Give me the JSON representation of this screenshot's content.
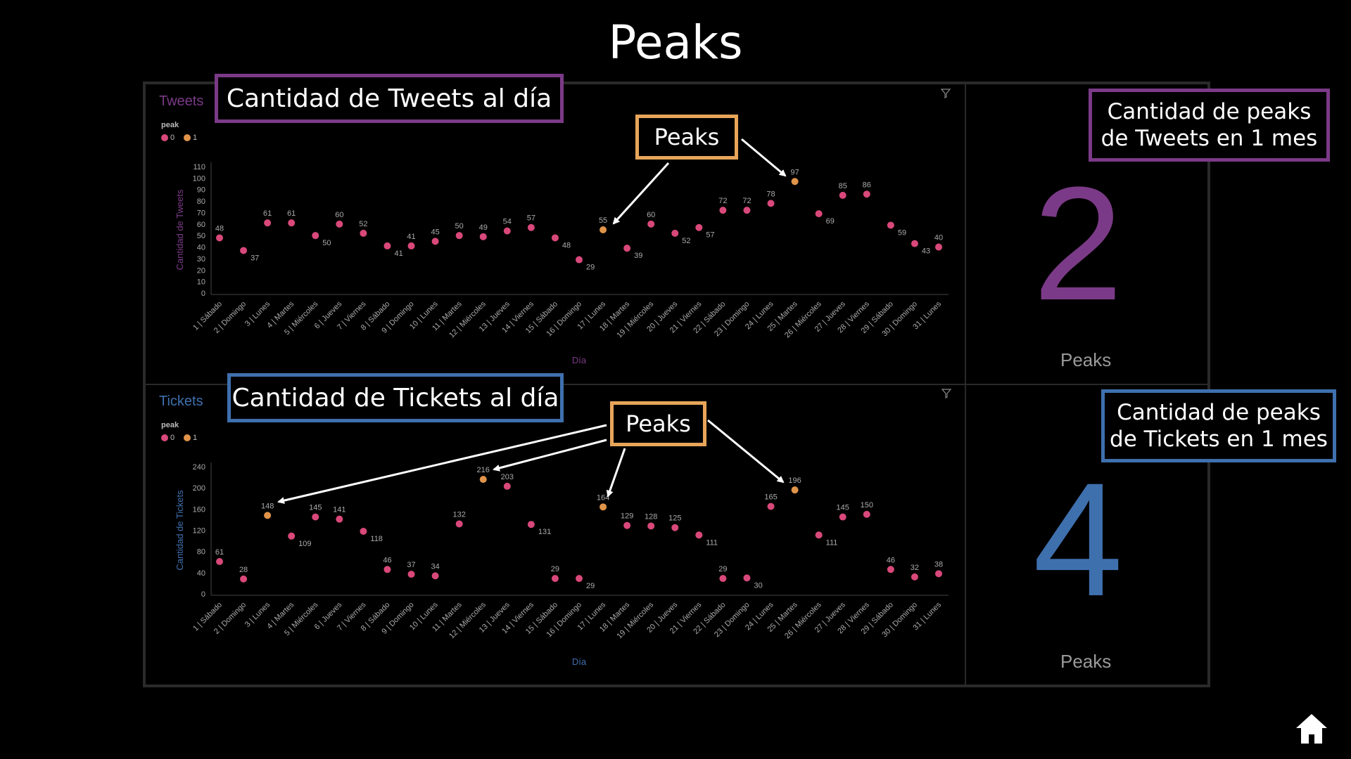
{
  "page": {
    "title": "Peaks"
  },
  "colors": {
    "tweets_accent": "#7b3a87",
    "tickets_accent": "#3f70ae",
    "peak_callout": "#e7a55a",
    "dot_normal": "#d9487a",
    "dot_peak": "#e0944a"
  },
  "tweets_panel": {
    "chart_title": "Tweets",
    "callout": "Cantidad de Tweets al día",
    "peaks_callout": "Peaks",
    "legend_title": "peak",
    "legend": [
      "0",
      "1"
    ],
    "kpi_callout_line1": "Cantidad de peaks",
    "kpi_callout_line2": "de Tweets en 1 mes",
    "kpi_value": "2",
    "kpi_label": "Peaks"
  },
  "tickets_panel": {
    "chart_title": "Tickets",
    "callout": "Cantidad de Tickets al día",
    "peaks_callout": "Peaks",
    "legend_title": "peak",
    "legend": [
      "0",
      "1"
    ],
    "kpi_callout_line1": "Cantidad de peaks",
    "kpi_callout_line2": "de Tickets en 1 mes",
    "kpi_value": "4",
    "kpi_label": "Peaks"
  },
  "chart_data": [
    {
      "type": "scatter",
      "title": "Tweets",
      "xlabel": "Día",
      "ylabel": "Cantidad de Tweets",
      "ylim": [
        0,
        110
      ],
      "yticks": [
        0,
        10,
        20,
        30,
        40,
        50,
        60,
        70,
        80,
        90,
        100,
        110
      ],
      "categories": [
        "1 | Sábado",
        "2 | Domingo",
        "3 | Lunes",
        "4 | Martes",
        "5 | Miércoles",
        "6 | Jueves",
        "7 | Viernes",
        "8 | Sábado",
        "9 | Domingo",
        "10 | Lunes",
        "11 | Martes",
        "12 | Miércoles",
        "13 | Jueves",
        "14 | Viernes",
        "15 | Sábado",
        "16 | Domingo",
        "17 | Lunes",
        "18 | Martes",
        "19 | Miércoles",
        "20 | Jueves",
        "21 | Viernes",
        "22 | Sábado",
        "23 | Domingo",
        "24 | Lunes",
        "25 | Martes",
        "26 | Miércoles",
        "27 | Jueves",
        "28 | Viernes",
        "29 | Sábado",
        "30 | Domingo",
        "31 | Lunes"
      ],
      "values": [
        48,
        37,
        61,
        61,
        50,
        60,
        52,
        41,
        41,
        45,
        50,
        49,
        54,
        57,
        48,
        29,
        55,
        39,
        60,
        52,
        57,
        72,
        72,
        78,
        97,
        69,
        85,
        86,
        59,
        43,
        40
      ],
      "peak": [
        0,
        0,
        0,
        0,
        0,
        0,
        0,
        0,
        0,
        0,
        0,
        0,
        0,
        0,
        0,
        0,
        1,
        0,
        0,
        0,
        0,
        0,
        0,
        0,
        1,
        0,
        0,
        0,
        0,
        0,
        0
      ],
      "legend": {
        "title": "peak",
        "entries": [
          "0",
          "1"
        ],
        "placement": "top-left"
      },
      "grid": false
    },
    {
      "type": "scatter",
      "title": "Tickets",
      "xlabel": "Día",
      "ylabel": "Cantidad de Tickets",
      "ylim": [
        0,
        240
      ],
      "yticks": [
        0,
        40,
        80,
        120,
        160,
        200,
        240
      ],
      "categories": [
        "1 | Sábado",
        "2 | Domingo",
        "3 | Lunes",
        "4 | Martes",
        "5 | Miércoles",
        "6 | Jueves",
        "7 | Viernes",
        "8 | Sábado",
        "9 | Domingo",
        "10 | Lunes",
        "11 | Martes",
        "12 | Miércoles",
        "13 | Jueves",
        "14 | Viernes",
        "15 | Sábado",
        "16 | Domingo",
        "17 | Lunes",
        "18 | Martes",
        "19 | Miércoles",
        "20 | Jueves",
        "21 | Viernes",
        "22 | Sábado",
        "23 | Domingo",
        "24 | Lunes",
        "25 | Martes",
        "26 | Miércoles",
        "27 | Jueves",
        "28 | Viernes",
        "29 | Sábado",
        "30 | Domingo",
        "31 | Lunes"
      ],
      "values": [
        61,
        28,
        148,
        109,
        145,
        141,
        118,
        46,
        37,
        34,
        132,
        216,
        203,
        131,
        29,
        29,
        164,
        129,
        128,
        125,
        111,
        29,
        30,
        165,
        196,
        111,
        145,
        150,
        46,
        32,
        38
      ],
      "peak": [
        0,
        0,
        1,
        0,
        0,
        0,
        0,
        0,
        0,
        0,
        0,
        1,
        0,
        0,
        0,
        0,
        1,
        0,
        0,
        0,
        0,
        0,
        0,
        0,
        1,
        0,
        0,
        0,
        0,
        0,
        0
      ],
      "legend": {
        "title": "peak",
        "entries": [
          "0",
          "1"
        ],
        "placement": "top-left"
      },
      "grid": false
    }
  ]
}
